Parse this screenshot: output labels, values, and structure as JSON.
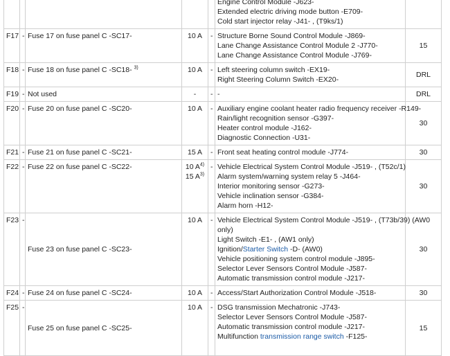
{
  "rows": [
    {
      "components": [
        "Engine Control Module -J623-",
        "Extended electric driving mode button -E709-",
        "Cold start injector relay -J41- , (T9ks/1)"
      ]
    },
    {
      "fuse": "F17",
      "dash1": "-",
      "description": "Fuse 17 on fuse panel C -SC17-",
      "amps": [
        {
          "text": "10 A"
        }
      ],
      "dash2": "-",
      "components": [
        "Structure Borne Sound Control Module -J869-",
        "Lane Change Assistance Control Module 2 -J770-",
        "Lane Change Assistance Control Module -J769-"
      ],
      "value": "15"
    },
    {
      "fuse": "F18",
      "dash1": "-",
      "description": "Fuse 18 on fuse panel C -SC18-",
      "description_note": "3)",
      "amps": [
        {
          "text": "10 A"
        }
      ],
      "dash2": "-",
      "components": [
        "Left steering column switch -EX19-",
        "Right Steering Column Switch -EX20-"
      ],
      "value": "DRL"
    },
    {
      "fuse": "F19",
      "dash1": "-",
      "description": "Not used",
      "amps": [
        {
          "text": "-"
        }
      ],
      "dash2": "-",
      "components": [
        "-"
      ],
      "value": "DRL"
    },
    {
      "fuse": "F20",
      "dash1": "-",
      "description": "Fuse 20 on fuse panel C -SC20-",
      "amps": [
        {
          "text": "10 A"
        }
      ],
      "dash2": "-",
      "components": [
        "Auxiliary engine coolant heater radio frequency receiver -R149-",
        "Rain/light recognition sensor -G397-",
        "Heater control module -J162-",
        "Diagnostic Connection -U31-"
      ],
      "value": "30"
    },
    {
      "fuse": "F21",
      "dash1": "-",
      "description": "Fuse 21 on fuse panel C -SC21-",
      "amps": [
        {
          "text": "15 A"
        }
      ],
      "dash2": "-",
      "components": [
        "Front seat heating control module -J774-"
      ],
      "value": "30"
    },
    {
      "fuse": "F22",
      "dash1": "-",
      "description": "Fuse 22 on fuse panel C -SC22-",
      "amps": [
        {
          "text": "10 A",
          "note": "4)"
        },
        {
          "text": "15 A",
          "note": "3)"
        }
      ],
      "dash2": "-",
      "components": [
        "Vehicle Electrical System Control Module -J519- , (T52c/1)",
        "Alarm system/warning system relay 5 -J464-",
        "Interior monitoring sensor -G273-",
        "Vehicle inclination sensor -G384-",
        "Alarm horn -H12-"
      ],
      "value": "30"
    },
    {
      "fuse": "F23",
      "dash1": "-",
      "description": "Fuse 23 on fuse panel C -SC23-",
      "amps": [
        {
          "text": "10 A"
        }
      ],
      "dash2": "-",
      "components": [
        "Vehicle Electrical System Control Module -J519- , (T73b/39) (AW0",
        "only)",
        "Light Switch -E1- , (AW1 only)",
        {
          "before": "Ignition/",
          "link": "Starter Switch",
          "after": " -D- (AW0)"
        },
        "Vehicle positioning system control module -J895-",
        "Selector Lever Sensors Control Module -J587-",
        "Automatic transmission control module -J217-"
      ],
      "value": "30"
    },
    {
      "fuse": "F24",
      "dash1": "-",
      "description": "Fuse 24 on fuse panel C -SC24-",
      "amps": [
        {
          "text": "10 A"
        }
      ],
      "dash2": "-",
      "components": [
        "Access/Start Authorization Control Module -J518-"
      ],
      "value": "30"
    },
    {
      "fuse": "F25",
      "dash1": "-",
      "description": "Fuse 25 on fuse panel C -SC25-",
      "amps": [
        {
          "text": "10 A"
        }
      ],
      "dash2": "-",
      "components": [
        "DSG transmission Mechatronic -J743-",
        "Selector Lever Sensors Control Module -J587-",
        "Automatic transmission control module -J217-",
        {
          "before": "Multifunction ",
          "link": "transmission range switch",
          "after": " -F125-"
        }
      ],
      "value": "15"
    }
  ]
}
